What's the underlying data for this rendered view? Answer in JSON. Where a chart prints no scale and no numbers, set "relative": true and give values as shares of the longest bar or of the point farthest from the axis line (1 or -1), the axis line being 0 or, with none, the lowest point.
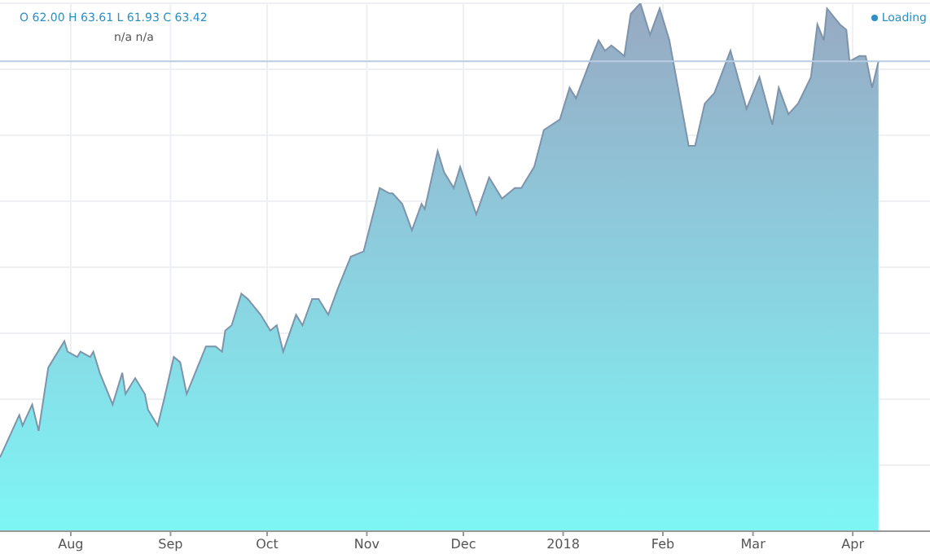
{
  "chart_data": {
    "type": "area",
    "relative": true,
    "x": [
      "2017-07-10",
      "2017-07-16",
      "2017-07-17",
      "2017-07-20",
      "2017-07-22",
      "2017-07-25",
      "2017-07-30",
      "2017-07-31",
      "2017-08-03",
      "2017-08-04",
      "2017-08-07",
      "2017-08-08",
      "2017-08-10",
      "2017-08-14",
      "2017-08-17",
      "2017-08-18",
      "2017-08-21",
      "2017-08-24",
      "2017-08-25",
      "2017-08-28",
      "2017-08-30",
      "2017-09-02",
      "2017-09-04",
      "2017-09-06",
      "2017-09-08",
      "2017-09-12",
      "2017-09-15",
      "2017-09-17",
      "2017-09-18",
      "2017-09-20",
      "2017-09-23",
      "2017-09-25",
      "2017-09-29",
      "2017-10-02",
      "2017-10-04",
      "2017-10-06",
      "2017-10-10",
      "2017-10-12",
      "2017-10-15",
      "2017-10-17",
      "2017-10-20",
      "2017-10-23",
      "2017-10-27",
      "2017-10-31",
      "2017-11-05",
      "2017-11-08",
      "2017-11-09",
      "2017-11-12",
      "2017-11-15",
      "2017-11-18",
      "2017-11-19",
      "2017-11-23",
      "2017-11-25",
      "2017-11-28",
      "2017-11-30",
      "2017-12-05",
      "2017-12-09",
      "2017-12-13",
      "2017-12-17",
      "2017-12-19",
      "2017-12-23",
      "2017-12-26",
      "2017-12-31",
      "2018-01-03",
      "2018-01-05",
      "2018-01-10",
      "2018-01-12",
      "2018-01-14",
      "2018-01-16",
      "2018-01-20",
      "2018-01-22",
      "2018-01-25",
      "2018-01-28",
      "2018-01-31",
      "2018-02-03",
      "2018-02-06",
      "2018-02-09",
      "2018-02-11",
      "2018-02-14",
      "2018-02-17",
      "2018-02-22",
      "2018-02-27",
      "2018-03-03",
      "2018-03-07",
      "2018-03-09",
      "2018-03-12",
      "2018-03-15",
      "2018-03-19",
      "2018-03-21",
      "2018-03-23",
      "2018-03-24",
      "2018-03-28",
      "2018-03-30",
      "2018-03-31",
      "2018-04-03",
      "2018-04-05",
      "2018-04-07",
      "2018-04-09"
    ],
    "series": [
      {
        "color": "#8ec8da",
        "values": [
          0.14,
          0.22,
          0.2,
          0.24,
          0.19,
          0.31,
          0.36,
          0.34,
          0.33,
          0.34,
          0.33,
          0.34,
          0.3,
          0.24,
          0.3,
          0.26,
          0.29,
          0.26,
          0.23,
          0.2,
          0.25,
          0.33,
          0.32,
          0.26,
          0.29,
          0.35,
          0.35,
          0.34,
          0.38,
          0.39,
          0.45,
          0.44,
          0.41,
          0.38,
          0.39,
          0.34,
          0.41,
          0.39,
          0.44,
          0.44,
          0.41,
          0.46,
          0.52,
          0.53,
          0.65,
          0.64,
          0.64,
          0.62,
          0.57,
          0.62,
          0.61,
          0.72,
          0.68,
          0.65,
          0.69,
          0.6,
          0.67,
          0.63,
          0.65,
          0.65,
          0.69,
          0.76,
          0.78,
          0.84,
          0.82,
          0.9,
          0.93,
          0.91,
          0.92,
          0.9,
          0.98,
          1.0,
          0.94,
          0.99,
          0.93,
          0.83,
          0.73,
          0.73,
          0.81,
          0.83,
          0.91,
          0.8,
          0.86,
          0.77,
          0.84,
          0.79,
          0.81,
          0.86,
          0.96,
          0.93,
          0.99,
          0.96,
          0.95,
          0.89,
          0.9,
          0.9,
          0.84,
          0.89
        ]
      }
    ],
    "xlim": [
      "2017-07-10",
      "2018-04-25"
    ],
    "xticks": [
      {
        "value": "2017-08-01",
        "label": "Aug"
      },
      {
        "value": "2017-09-01",
        "label": "Sep"
      },
      {
        "value": "2017-10-01",
        "label": "Oct"
      },
      {
        "value": "2017-11-01",
        "label": "Nov"
      },
      {
        "value": "2017-12-01",
        "label": "Dec"
      },
      {
        "value": "2018-01-01",
        "label": "2018"
      },
      {
        "value": "2018-02-01",
        "label": "Feb"
      },
      {
        "value": "2018-03-01",
        "label": "Mar"
      },
      {
        "value": "2018-04-01",
        "label": "Apr"
      }
    ],
    "ref_lines": [
      {
        "axis": "y",
        "value": 0.89,
        "color": "#b8cde3"
      }
    ],
    "grid": true,
    "annotations": [
      "O 62.00 H 63.61 L 61.93 C 63.42",
      "n/a n/a",
      "Loading"
    ]
  }
}
